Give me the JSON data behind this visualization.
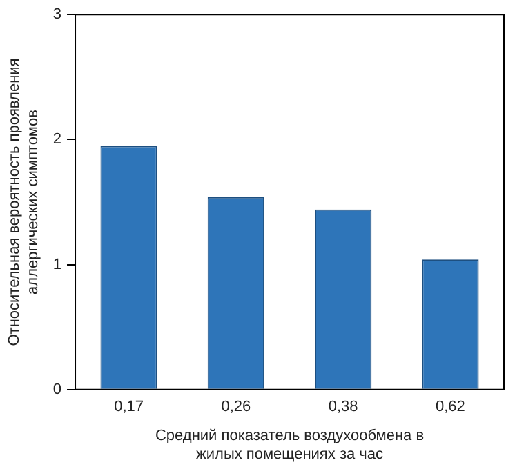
{
  "chart_data": {
    "type": "bar",
    "categories": [
      "0,17",
      "0,26",
      "0,38",
      "0,62"
    ],
    "values": [
      1.95,
      1.54,
      1.44,
      1.04
    ],
    "color": "#2e75b9",
    "xlabel": "Средний показатель воздухообмена в жилых помещениях за час",
    "ylabel": "Относительная вероятность проявления аллергических симптомов",
    "ylim": [
      0,
      3
    ],
    "yticks": [
      0,
      1,
      2,
      3
    ],
    "grid": false,
    "legend": false
  }
}
